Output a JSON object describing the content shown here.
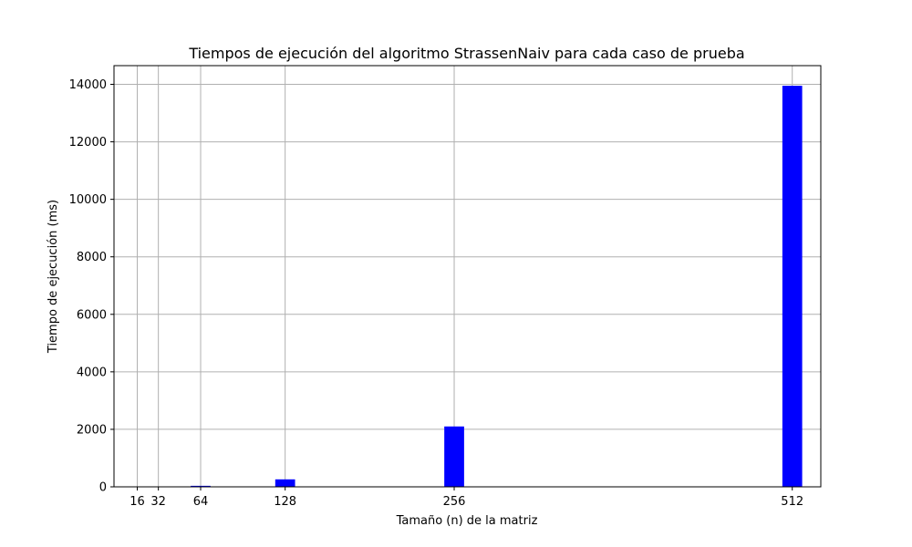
{
  "chart_data": {
    "type": "bar",
    "title": "Tiempos de ejecución del algoritmo StrassenNaiv para cada caso de prueba",
    "xlabel": "Tamaño (n) de la matriz",
    "ylabel": "Tiempo de ejecución (ms)",
    "x": [
      16,
      32,
      64,
      128,
      256,
      512
    ],
    "values": [
      2,
      5,
      35,
      260,
      2100,
      13950
    ],
    "xticks": [
      16,
      32,
      64,
      128,
      256,
      512
    ],
    "yticks": [
      0,
      2000,
      4000,
      6000,
      8000,
      10000,
      12000,
      14000
    ],
    "xlim": [
      -1.6,
      533.6
    ],
    "ylim": [
      0,
      14650
    ],
    "bar_width": 15,
    "grid": true,
    "bar_color": "#0000ff",
    "grid_color": "#b0b0b0"
  }
}
